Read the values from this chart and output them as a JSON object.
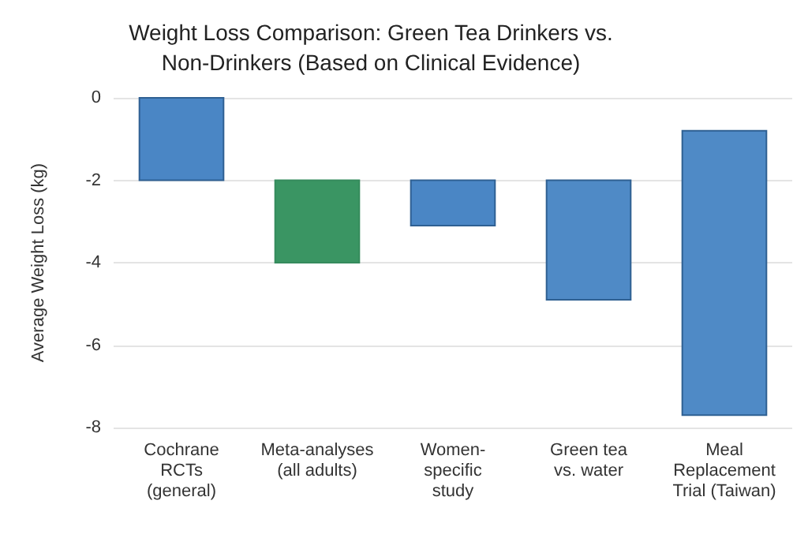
{
  "chart_data": {
    "type": "bar",
    "title": "Weight Loss Comparison: Green Tea Drinkers vs.\nNon-Drinkers (Based on Clinical Evidence)",
    "ylabel": "Average Weight Loss (kg)",
    "categories": [
      "Cochrane\nRCTs\n(general)",
      "Meta-analyses\n(all adults)",
      "Women-\nspecific\nstudy",
      "Green tea\nvs. water",
      "Meal\nReplacement\nTrial (Taiwan)"
    ],
    "base": [
      0,
      -2,
      -2,
      -2,
      -0.8
    ],
    "values": [
      -2,
      -2,
      -1.1,
      -2.9,
      -6.9
    ],
    "colors": [
      "#4a86c5",
      "#3a9563",
      "#4a86c5",
      "#4f8ac6",
      "#4f8ac6"
    ],
    "ylim": [
      -8,
      0
    ],
    "yticks": [
      -8,
      -6,
      -4,
      -2,
      0
    ],
    "grid": "y"
  }
}
